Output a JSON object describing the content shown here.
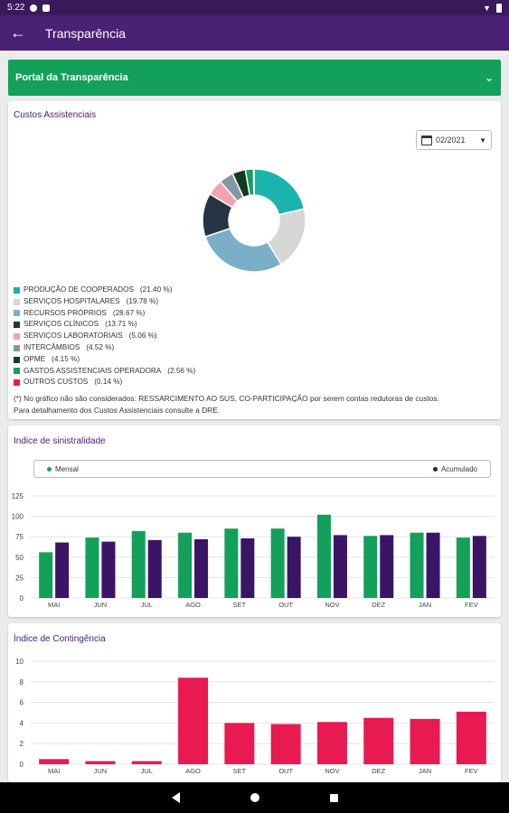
{
  "status": {
    "time": "5:22",
    "icons": [
      "notification-icon",
      "sim-icon",
      "wifi-icon",
      "battery-icon"
    ]
  },
  "appbar": {
    "title": "Transparência",
    "back_icon": "arrow-left-icon"
  },
  "portal": {
    "label": "Portal da Transparência"
  },
  "custos": {
    "title": "Custos Assistenciais",
    "date": "02/2021",
    "legend": [
      {
        "label": "PRODUÇÃO DE COOPERADOS",
        "pct": "(21.40 %)",
        "color": "#1ab3ad"
      },
      {
        "label": "SERVIÇOS HOSPITALARES",
        "pct": "(19.78 %)",
        "color": "#d6d6d6"
      },
      {
        "label": "RECURSOS PRÓPRIOS",
        "pct": "(28.67 %)",
        "color": "#7bafc7"
      },
      {
        "label": "SERVIÇOS CLÍNICOS",
        "pct": "(13.71 %)",
        "color": "#283245"
      },
      {
        "label": "SERVIÇOS LABORATORIAIS",
        "pct": "(5.06 %)",
        "color": "#f4a3ad"
      },
      {
        "label": "INTERCÂMBIOS",
        "pct": "(4.52 %)",
        "color": "#8596a5"
      },
      {
        "label": "OPME",
        "pct": "(4.15 %)",
        "color": "#103d22"
      },
      {
        "label": "GASTOS ASSISTENCIAIS OPERADORA",
        "pct": "(2.56 %)",
        "color": "#13a05a"
      },
      {
        "label": "OUTROS CUSTOS",
        "pct": "(0.14 %)",
        "color": "#ee1c4e"
      }
    ],
    "note_line1": "(*) No gráfico não são considerados: RESSARCIMENTO AO SUS, CO-PARTICIPAÇÃO por serem contas redutoras de custos.",
    "note_line2": "Para detalhamento dos Custos Assistenciais consulte a DRE."
  },
  "chart_data": [
    {
      "type": "pie",
      "title": "Custos Assistenciais",
      "categories": [
        "PRODUÇÃO DE COOPERADOS",
        "SERVIÇOS HOSPITALARES",
        "RECURSOS PRÓPRIOS",
        "SERVIÇOS CLÍNICOS",
        "SERVIÇOS LABORATORIAIS",
        "INTERCÂMBIOS",
        "OPME",
        "GASTOS ASSISTENCIAIS OPERADORA",
        "OUTROS CUSTOS"
      ],
      "values": [
        21.4,
        19.78,
        28.67,
        13.71,
        5.06,
        4.52,
        4.15,
        2.56,
        0.14
      ],
      "colors": [
        "#1ab3ad",
        "#d6d6d6",
        "#7bafc7",
        "#283245",
        "#f4a3ad",
        "#8596a5",
        "#103d22",
        "#13a05a",
        "#ee1c4e"
      ]
    },
    {
      "type": "bar",
      "title": "Indice de sinistralidade",
      "categories": [
        "MAI",
        "JUN",
        "JUL",
        "AGO",
        "SET",
        "OUT",
        "NOV",
        "DEZ",
        "JAN",
        "FEV"
      ],
      "series": [
        {
          "name": "Mensal",
          "color": "#13a05a",
          "values": [
            56,
            74,
            82,
            80,
            85,
            85,
            102,
            76,
            80,
            74
          ]
        },
        {
          "name": "Acumulado",
          "color": "#3a1565",
          "values": [
            68,
            69,
            71,
            72,
            73,
            75,
            77,
            77,
            80,
            76
          ]
        }
      ],
      "ylim": [
        0,
        125
      ],
      "yticks": [
        0,
        25,
        50,
        75,
        100,
        125
      ],
      "legend": "top"
    },
    {
      "type": "bar",
      "title": "Índice de Contingência",
      "categories": [
        "MAI",
        "JUN",
        "JUL",
        "AGO",
        "SET",
        "OUT",
        "NOV",
        "DEZ",
        "JAN",
        "FEV"
      ],
      "series": [
        {
          "color": "#e81a51",
          "values": [
            0.5,
            0.3,
            0.3,
            8.4,
            4.0,
            3.9,
            4.1,
            4.5,
            4.4,
            5.1
          ]
        }
      ],
      "ylim": [
        0,
        10
      ],
      "yticks": [
        0,
        2,
        4,
        6,
        8,
        10
      ]
    }
  ]
}
